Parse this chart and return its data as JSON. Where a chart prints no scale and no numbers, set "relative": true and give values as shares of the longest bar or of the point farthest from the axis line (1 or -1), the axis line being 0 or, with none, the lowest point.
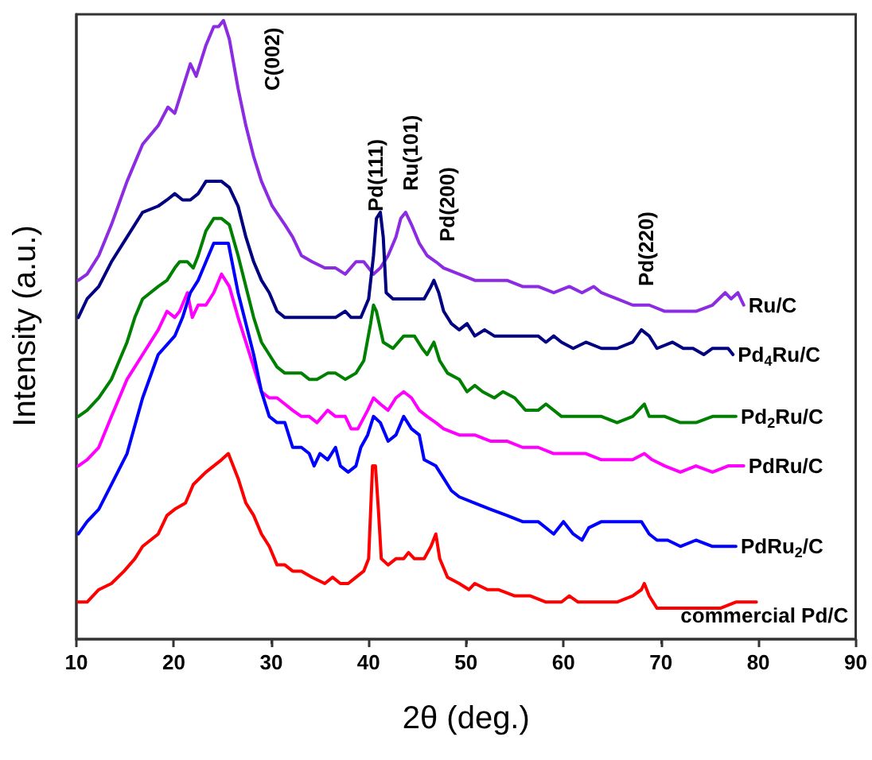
{
  "chart_data": {
    "type": "line",
    "relative": true,
    "xlabel": "2θ (deg.)",
    "ylabel": "Intensity (a.u.)",
    "xlim": [
      10,
      90
    ],
    "xticks": [
      10,
      20,
      30,
      40,
      50,
      60,
      70,
      80,
      90
    ],
    "legend": false,
    "grid": false,
    "marker": "none",
    "annotations": [
      "C(002)",
      "Pd(111)",
      "Ru(101)",
      "Pd(200)",
      "Pd(220)"
    ],
    "series": [
      {
        "name": "Ru/C",
        "color": "#8b2be2",
        "x": [
          10.2,
          11.1,
          12.3,
          13.6,
          15.2,
          16.8,
          18.4,
          19.4,
          20.1,
          20.9,
          21.7,
          22.3,
          23.3,
          24.1,
          24.6,
          25.1,
          25.7,
          26.6,
          27.4,
          28.2,
          29.0,
          30.1,
          31.4,
          32.2,
          33.1,
          34.2,
          35.5,
          36.6,
          37.6,
          38.7,
          39.5,
          40.5,
          41.2,
          42.0,
          42.8,
          43.3,
          43.8,
          44.4,
          45.2,
          46.0,
          46.9,
          47.7,
          49.3,
          50.9,
          52.5,
          54.2,
          55.8,
          57.4,
          59.0,
          60.6,
          61.9,
          63.1,
          63.9,
          65.5,
          67.1,
          68.8,
          70.4,
          72.0,
          73.6,
          75.3,
          76.6,
          77.2,
          77.9,
          78.5
        ],
        "values": [
          0.58,
          0.59,
          0.62,
          0.67,
          0.74,
          0.8,
          0.83,
          0.86,
          0.85,
          0.89,
          0.93,
          0.91,
          0.96,
          0.99,
          0.99,
          1.0,
          0.97,
          0.89,
          0.83,
          0.78,
          0.74,
          0.7,
          0.67,
          0.65,
          0.62,
          0.61,
          0.6,
          0.6,
          0.59,
          0.61,
          0.61,
          0.59,
          0.6,
          0.62,
          0.65,
          0.68,
          0.69,
          0.67,
          0.64,
          0.62,
          0.61,
          0.6,
          0.59,
          0.58,
          0.58,
          0.58,
          0.57,
          0.57,
          0.56,
          0.57,
          0.56,
          0.57,
          0.56,
          0.55,
          0.54,
          0.54,
          0.53,
          0.53,
          0.53,
          0.54,
          0.56,
          0.55,
          0.56,
          0.54
        ]
      },
      {
        "name": "Pd$_{4}$Ru/C",
        "color": "#000080",
        "x": [
          10.2,
          11.1,
          12.3,
          13.6,
          15.2,
          16.8,
          18.4,
          19.3,
          20.1,
          20.9,
          21.7,
          22.5,
          23.3,
          24.1,
          24.9,
          25.7,
          26.6,
          27.4,
          28.2,
          29.0,
          29.8,
          30.6,
          31.4,
          32.2,
          33.1,
          33.9,
          34.7,
          35.6,
          36.6,
          37.6,
          38.2,
          39.2,
          40.0,
          40.5,
          40.8,
          41.2,
          41.5,
          41.8,
          42.5,
          43.6,
          44.7,
          45.7,
          46.4,
          46.7,
          47.2,
          47.7,
          48.5,
          49.3,
          50.1,
          50.9,
          51.9,
          52.9,
          54.2,
          55.8,
          57.4,
          58.2,
          59.0,
          59.8,
          61.0,
          62.3,
          63.9,
          65.5,
          67.1,
          68.0,
          68.8,
          69.6,
          71.2,
          72.3,
          73.3,
          74.4,
          75.3,
          76.9,
          77.4
        ],
        "values": [
          0.52,
          0.55,
          0.57,
          0.61,
          0.65,
          0.69,
          0.7,
          0.71,
          0.72,
          0.71,
          0.71,
          0.72,
          0.74,
          0.74,
          0.74,
          0.73,
          0.7,
          0.65,
          0.61,
          0.58,
          0.56,
          0.53,
          0.52,
          0.52,
          0.52,
          0.52,
          0.52,
          0.52,
          0.52,
          0.53,
          0.52,
          0.52,
          0.55,
          0.62,
          0.68,
          0.69,
          0.65,
          0.56,
          0.55,
          0.55,
          0.55,
          0.55,
          0.57,
          0.58,
          0.56,
          0.53,
          0.51,
          0.5,
          0.51,
          0.49,
          0.5,
          0.49,
          0.49,
          0.49,
          0.49,
          0.48,
          0.49,
          0.48,
          0.47,
          0.48,
          0.47,
          0.47,
          0.48,
          0.5,
          0.49,
          0.47,
          0.48,
          0.47,
          0.47,
          0.46,
          0.47,
          0.47,
          0.46
        ]
      },
      {
        "name": "Pd$_{2}$Ru/C",
        "color": "#008000",
        "x": [
          10.2,
          11.1,
          12.3,
          13.6,
          14.4,
          15.2,
          16.0,
          16.8,
          18.4,
          19.3,
          20.1,
          20.6,
          21.4,
          22.0,
          22.5,
          23.3,
          24.1,
          24.9,
          25.7,
          26.6,
          27.4,
          28.2,
          29.0,
          29.8,
          30.6,
          31.4,
          32.2,
          33.1,
          33.9,
          34.7,
          35.8,
          36.6,
          37.6,
          38.7,
          39.5,
          40.2,
          40.5,
          40.8,
          41.5,
          42.5,
          43.6,
          44.7,
          45.5,
          46.0,
          46.7,
          47.3,
          48.1,
          49.3,
          50.1,
          50.9,
          51.7,
          52.9,
          53.8,
          55.0,
          56.1,
          57.4,
          58.2,
          59.8,
          61.0,
          62.3,
          63.9,
          65.5,
          67.1,
          68.3,
          68.8,
          70.4,
          72.0,
          73.6,
          75.3,
          77.7
        ],
        "values": [
          0.36,
          0.37,
          0.39,
          0.42,
          0.45,
          0.48,
          0.52,
          0.55,
          0.57,
          0.58,
          0.6,
          0.61,
          0.61,
          0.6,
          0.62,
          0.66,
          0.68,
          0.68,
          0.67,
          0.62,
          0.57,
          0.52,
          0.48,
          0.46,
          0.44,
          0.43,
          0.43,
          0.43,
          0.42,
          0.42,
          0.43,
          0.43,
          0.42,
          0.43,
          0.45,
          0.51,
          0.54,
          0.53,
          0.48,
          0.47,
          0.49,
          0.49,
          0.47,
          0.46,
          0.48,
          0.45,
          0.43,
          0.42,
          0.4,
          0.41,
          0.4,
          0.39,
          0.4,
          0.39,
          0.37,
          0.37,
          0.38,
          0.36,
          0.36,
          0.36,
          0.36,
          0.35,
          0.36,
          0.38,
          0.36,
          0.36,
          0.35,
          0.35,
          0.36,
          0.36
        ]
      },
      {
        "name": "PdRu/C",
        "color": "#ff00ff",
        "x": [
          10.2,
          11.1,
          12.3,
          13.6,
          15.2,
          16.8,
          18.4,
          19.3,
          20.1,
          20.6,
          21.4,
          21.9,
          22.5,
          23.3,
          24.1,
          24.9,
          25.7,
          26.6,
          27.4,
          28.2,
          29.0,
          29.8,
          30.6,
          31.4,
          32.2,
          33.1,
          33.9,
          34.7,
          35.8,
          36.6,
          37.6,
          38.2,
          38.9,
          39.9,
          40.5,
          41.2,
          42.0,
          42.8,
          43.6,
          44.4,
          45.2,
          46.0,
          46.9,
          47.7,
          49.3,
          50.9,
          52.5,
          54.2,
          55.8,
          57.4,
          59.0,
          60.6,
          62.3,
          63.9,
          65.5,
          67.1,
          68.3,
          69.1,
          70.4,
          72.0,
          73.6,
          75.3,
          76.9,
          78.5
        ],
        "values": [
          0.28,
          0.29,
          0.31,
          0.36,
          0.42,
          0.46,
          0.5,
          0.53,
          0.52,
          0.53,
          0.56,
          0.52,
          0.54,
          0.54,
          0.56,
          0.59,
          0.57,
          0.52,
          0.48,
          0.44,
          0.4,
          0.39,
          0.39,
          0.38,
          0.37,
          0.36,
          0.36,
          0.35,
          0.37,
          0.36,
          0.36,
          0.34,
          0.34,
          0.37,
          0.39,
          0.38,
          0.37,
          0.39,
          0.4,
          0.39,
          0.37,
          0.36,
          0.35,
          0.34,
          0.33,
          0.33,
          0.32,
          0.32,
          0.31,
          0.31,
          0.3,
          0.3,
          0.3,
          0.29,
          0.29,
          0.29,
          0.3,
          0.29,
          0.28,
          0.27,
          0.28,
          0.27,
          0.28,
          0.28
        ]
      },
      {
        "name": "PdRu$_{2}$/C",
        "color": "#0000ff",
        "x": [
          10.2,
          11.1,
          12.3,
          13.6,
          15.2,
          16.8,
          18.4,
          20.1,
          20.9,
          21.7,
          22.5,
          23.3,
          24.1,
          24.9,
          25.6,
          26.6,
          27.4,
          28.2,
          29.0,
          29.8,
          30.6,
          31.4,
          32.2,
          33.1,
          33.9,
          34.4,
          35.0,
          35.8,
          36.6,
          37.1,
          37.9,
          38.7,
          39.2,
          39.9,
          40.5,
          41.2,
          42.0,
          42.8,
          43.6,
          44.4,
          45.2,
          45.7,
          46.9,
          47.7,
          48.5,
          49.3,
          50.9,
          52.5,
          54.2,
          55.8,
          57.4,
          59.0,
          60.0,
          61.0,
          61.9,
          62.6,
          63.9,
          65.5,
          67.1,
          68.0,
          68.8,
          69.6,
          70.7,
          72.0,
          73.6,
          75.3,
          76.9,
          77.7
        ],
        "values": [
          0.17,
          0.19,
          0.21,
          0.25,
          0.3,
          0.39,
          0.46,
          0.49,
          0.52,
          0.56,
          0.58,
          0.61,
          0.64,
          0.64,
          0.64,
          0.56,
          0.51,
          0.46,
          0.4,
          0.36,
          0.35,
          0.35,
          0.31,
          0.31,
          0.3,
          0.28,
          0.3,
          0.29,
          0.31,
          0.28,
          0.27,
          0.28,
          0.31,
          0.33,
          0.36,
          0.35,
          0.32,
          0.33,
          0.36,
          0.34,
          0.33,
          0.29,
          0.28,
          0.26,
          0.24,
          0.23,
          0.22,
          0.21,
          0.2,
          0.19,
          0.19,
          0.17,
          0.19,
          0.17,
          0.16,
          0.18,
          0.19,
          0.19,
          0.19,
          0.19,
          0.17,
          0.16,
          0.16,
          0.15,
          0.16,
          0.15,
          0.15,
          0.15
        ]
      },
      {
        "name": "commercial Pd/C",
        "color": "#ff0000",
        "x": [
          10.2,
          11.1,
          12.3,
          13.6,
          14.9,
          16.0,
          16.8,
          18.4,
          19.3,
          20.1,
          21.2,
          22.0,
          23.3,
          24.1,
          24.9,
          25.6,
          26.6,
          27.4,
          28.2,
          29.0,
          29.8,
          30.6,
          31.4,
          32.2,
          33.1,
          34.2,
          35.5,
          36.3,
          37.1,
          37.9,
          38.7,
          39.5,
          40.0,
          40.4,
          40.7,
          41.0,
          41.3,
          42.0,
          42.8,
          43.6,
          44.1,
          44.7,
          45.7,
          46.4,
          46.9,
          47.3,
          48.1,
          49.3,
          50.3,
          50.9,
          52.2,
          53.3,
          55.0,
          56.6,
          58.2,
          59.8,
          60.6,
          61.5,
          62.3,
          63.9,
          65.5,
          67.1,
          68.0,
          68.3,
          68.8,
          69.6,
          71.2,
          72.8,
          74.4,
          76.1,
          77.7,
          79.3,
          79.8
        ],
        "values": [
          0.06,
          0.06,
          0.08,
          0.09,
          0.11,
          0.13,
          0.15,
          0.17,
          0.2,
          0.21,
          0.22,
          0.25,
          0.27,
          0.28,
          0.29,
          0.3,
          0.26,
          0.22,
          0.2,
          0.17,
          0.15,
          0.12,
          0.12,
          0.11,
          0.11,
          0.1,
          0.09,
          0.1,
          0.09,
          0.09,
          0.1,
          0.11,
          0.13,
          0.28,
          0.28,
          0.21,
          0.13,
          0.12,
          0.13,
          0.13,
          0.14,
          0.13,
          0.13,
          0.15,
          0.17,
          0.13,
          0.1,
          0.09,
          0.08,
          0.09,
          0.08,
          0.08,
          0.07,
          0.07,
          0.06,
          0.06,
          0.07,
          0.06,
          0.06,
          0.06,
          0.06,
          0.07,
          0.08,
          0.09,
          0.07,
          0.05,
          0.05,
          0.05,
          0.05,
          0.05,
          0.06,
          0.06,
          0.06
        ]
      }
    ]
  }
}
